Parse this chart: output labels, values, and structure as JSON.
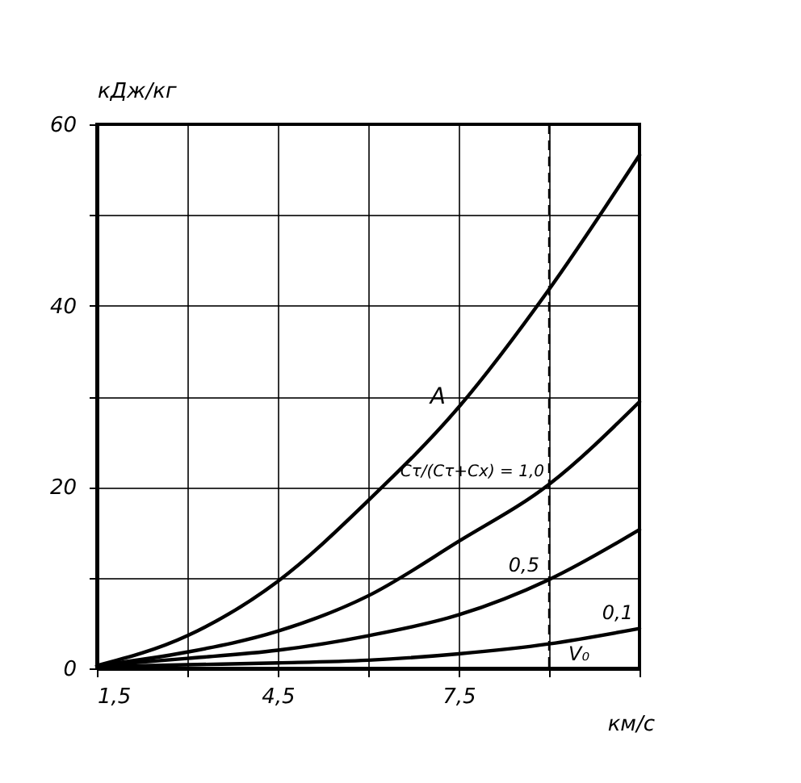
{
  "chart_data": {
    "type": "line",
    "xlabel": "км/с",
    "ylabel": "кДж/кг",
    "x": [
      1.5,
      3,
      4.5,
      6,
      7.5,
      9,
      10.5
    ],
    "series": [
      {
        "name": "A",
        "color": "#000000",
        "values": [
          0.3,
          3.6,
          9.6,
          18.5,
          28.8,
          41.8,
          56.6
        ]
      },
      {
        "name": "Cτ/(Cτ+Cx) = 1,0",
        "color": "#000000",
        "values": [
          0.3,
          1.8,
          4.1,
          8.0,
          14.0,
          20.3,
          29.4
        ]
      },
      {
        "name": "0,5",
        "color": "#000000",
        "values": [
          0.3,
          1.1,
          2.0,
          3.6,
          5.9,
          9.8,
          15.3
        ]
      },
      {
        "name": "0,1",
        "color": "#000000",
        "values": [
          0.2,
          0.4,
          0.6,
          0.9,
          1.6,
          2.7,
          4.4
        ]
      }
    ],
    "xlim": [
      1.5,
      10.5
    ],
    "xticks": [
      {
        "value": 1.5,
        "label": "1,5"
      },
      {
        "value": 3,
        "label": null
      },
      {
        "value": 4.5,
        "label": "4,5"
      },
      {
        "value": 6,
        "label": null
      },
      {
        "value": 7.5,
        "label": "7,5"
      },
      {
        "value": 9,
        "label": null
      },
      {
        "value": 10.5,
        "label": null
      }
    ],
    "ylim": [
      0,
      60
    ],
    "yticks": [
      0,
      {
        "value": 10,
        "label": null
      },
      20,
      {
        "value": 30,
        "label": null
      },
      40,
      {
        "value": 50,
        "label": null
      },
      60
    ],
    "grid": true,
    "legend": false,
    "marker": "none",
    "line_style": "solid",
    "ref_lines": [
      {
        "axis": "x",
        "value": 9,
        "label": "V₀",
        "line_style": "dashed"
      }
    ]
  }
}
